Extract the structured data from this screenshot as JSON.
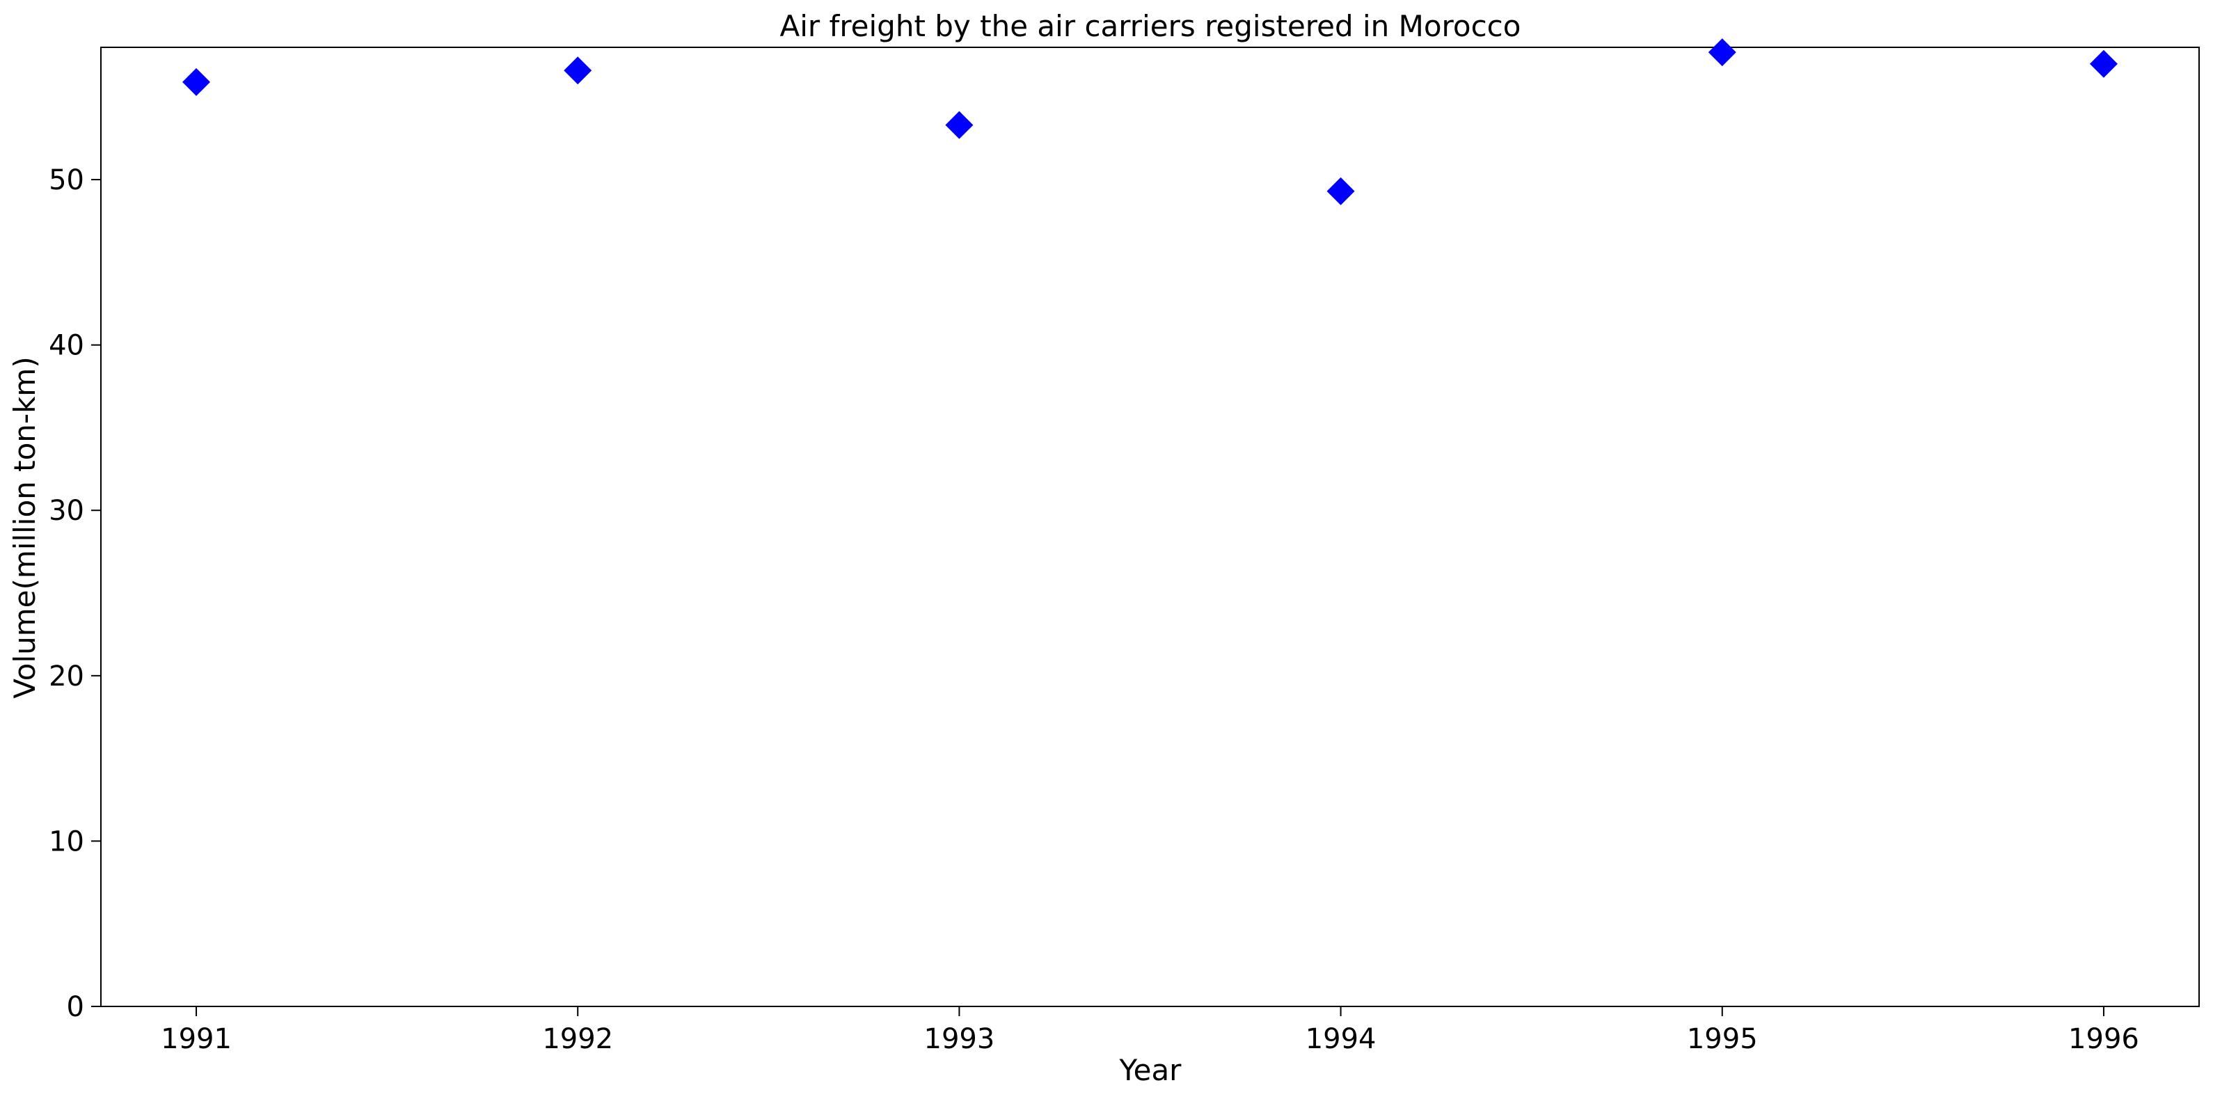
{
  "chart_data": {
    "type": "scatter",
    "title": "Air freight by the air carriers registered in Morocco",
    "xlabel": "Year",
    "ylabel": "Volume(million ton-km)",
    "x": [
      1991,
      1992,
      1993,
      1994,
      1995,
      1996
    ],
    "series": [
      {
        "values": [
          55.9,
          56.6,
          53.3,
          49.3,
          57.7,
          57.0
        ],
        "marker": "diamond",
        "color": "#0000ff"
      }
    ],
    "xticks": [
      "1991",
      "1992",
      "1993",
      "1994",
      "1995",
      "1996"
    ],
    "yticks": [
      "0",
      "10",
      "20",
      "30",
      "40",
      "50"
    ],
    "xlim": [
      1990.75,
      1996.25
    ],
    "ylim": [
      0,
      58
    ],
    "grid": false,
    "legend": "none"
  }
}
